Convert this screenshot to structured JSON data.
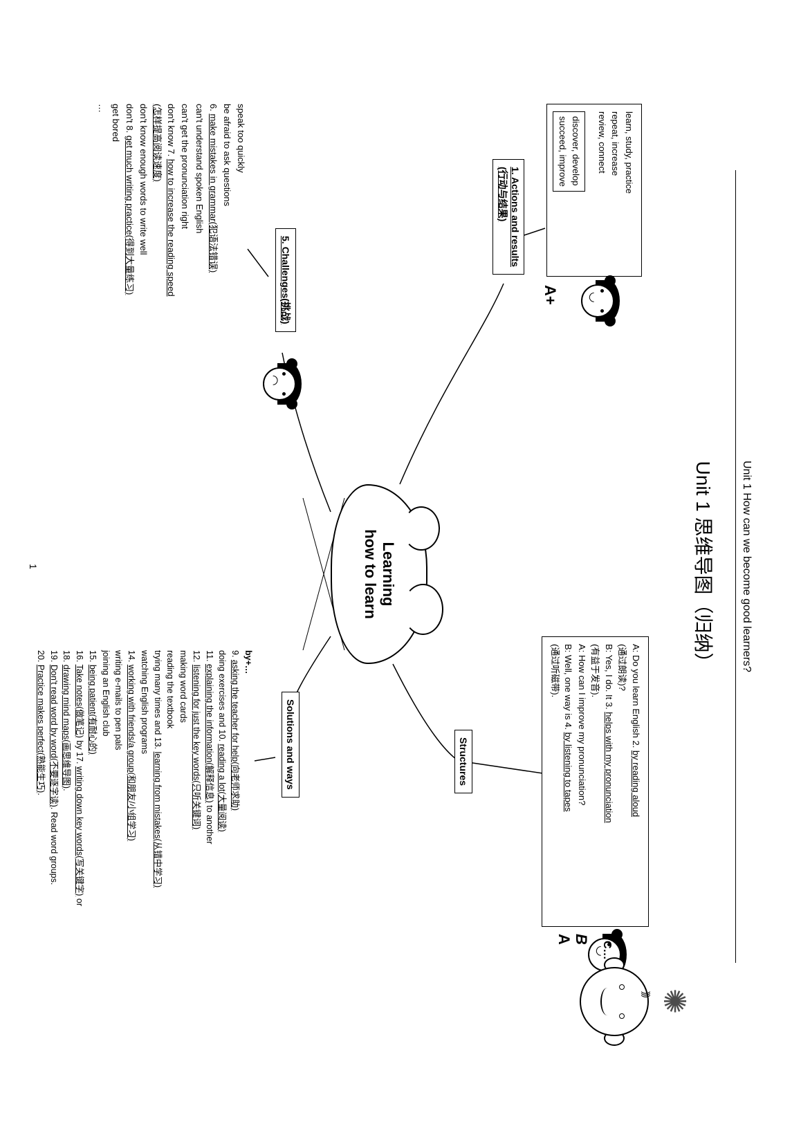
{
  "header": "Unit 1   How can we become good learners?",
  "title": "Unit 1  思维导图（归纳）",
  "center": {
    "line1": "Learning",
    "line2": "how to learn"
  },
  "actions_box": {
    "lines": [
      "learn, study, practice",
      "repeat, increase",
      "review, connect",
      "",
      "discover, develop",
      "succeed, improve"
    ]
  },
  "actions_label": "1. Actions and results\n(行动与结果)",
  "structures_box": {
    "lines": [
      "A: Do you learn English 2. <u>by reading aloud</u>",
      "(通过朗读)?",
      "B: Yes, I do. It 3. <u>helps with my pronunciation</u>",
      "(有益于发音).",
      "A: How can I improve my pronunciation?",
      "B: Well, one way is 4. <u>by listening to tapes</u>",
      "(通过听磁带)."
    ]
  },
  "structures_label": "Structures",
  "grade_left": "A+",
  "grade_right_top": "B",
  "grade_right_bottom": "A",
  "grade_right_c": "C…",
  "challenges_label": "5. Challenges(挑战)",
  "challenges_lines": [
    "speak too quickly",
    "be afraid to ask questions",
    "6. <u>make mistakes in grammar(犯语法错误)</u>",
    "can't understand spoken English",
    "can't get the pronunciation right",
    "don't know 7. <u>how to increase the reading speed</u>",
    "<u>(怎样提高阅读速度)</u>",
    "don't know enough words to write well",
    "don't 8. <u>get much writing practice(得到大量练习)</u>",
    "get bored",
    "…"
  ],
  "solutions_label": "Solutions and ways",
  "solutions_lines": [
    "<b>by+…</b>",
    "9. <u>asking the teacher for help(向老师求助)</u>",
    "doing exercises and 10. <u>reading a lot(大量阅读)</u>",
    "11. <u>explaining the information(解释信息)</u> to another",
    "12. <u>listening for just the key words(只听关键词)</u>",
    "making word cards",
    "reading the textbook",
    "trying many times and 13. <u>learning from mistakes(从错中学习)</u>",
    "watching English programs",
    "14. <u>working with friends/a group(和朋友/小组学习)</u>",
    "writing e-mails to pen pals",
    "joining an English club",
    "15. <u>being patient(有耐心的)</u>",
    "16. <u>Take notes(做笔记)</u> by 17. <u>writing down key words(写关键字)</u> or",
    "                                               18. <u>drawing mind maps(画思维导图)</u>.",
    "19. <u>Don't read word by word(不要逐字读)</u>. Read word groups.",
    "20. <u>Practice makes perfect(熟能生巧)</u>."
  ],
  "page_number": "1",
  "colors": {
    "bg": "#ffffff",
    "fg": "#000000"
  }
}
